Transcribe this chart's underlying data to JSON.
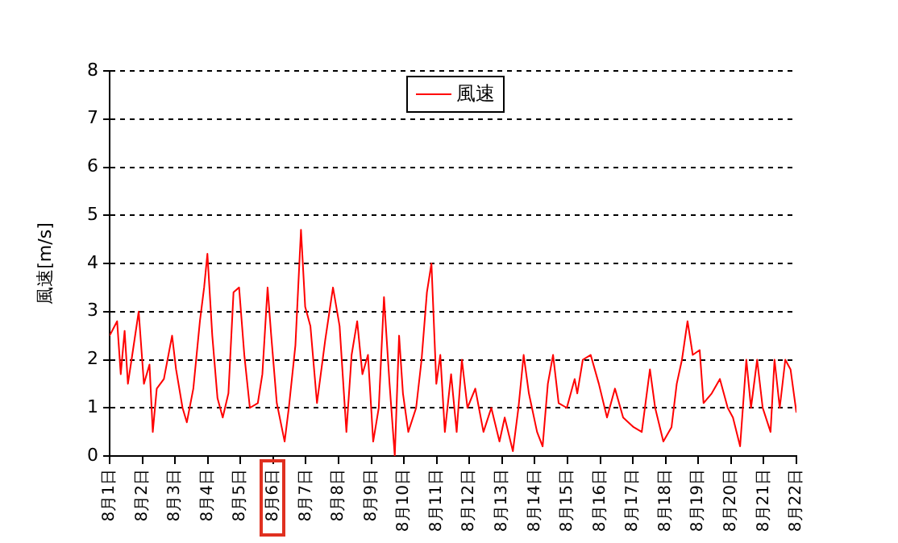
{
  "chart_data": {
    "type": "line",
    "ylabel": "風速[m/s]",
    "xlim": [
      "--08-01",
      "--08-22"
    ],
    "xticks": [
      {
        "value": "--08-01",
        "label": "8月1日"
      },
      {
        "value": "--08-02",
        "label": "8月2日"
      },
      {
        "value": "--08-03",
        "label": "8月3日"
      },
      {
        "value": "--08-04",
        "label": "8月4日"
      },
      {
        "value": "--08-05",
        "label": "8月5日"
      },
      {
        "value": "--08-06",
        "label": "8月6日"
      },
      {
        "value": "--08-07",
        "label": "8月7日"
      },
      {
        "value": "--08-08",
        "label": "8月8日"
      },
      {
        "value": "--08-09",
        "label": "8月9日"
      },
      {
        "value": "--08-10",
        "label": "8月10日"
      },
      {
        "value": "--08-11",
        "label": "8月11日"
      },
      {
        "value": "--08-12",
        "label": "8月12日"
      },
      {
        "value": "--08-13",
        "label": "8月13日"
      },
      {
        "value": "--08-14",
        "label": "8月14日"
      },
      {
        "value": "--08-15",
        "label": "8月15日"
      },
      {
        "value": "--08-16",
        "label": "8月16日"
      },
      {
        "value": "--08-17",
        "label": "8月17日"
      },
      {
        "value": "--08-18",
        "label": "8月18日"
      },
      {
        "value": "--08-19",
        "label": "8月19日"
      },
      {
        "value": "--08-20",
        "label": "8月20日"
      },
      {
        "value": "--08-21",
        "label": "8月21日"
      },
      {
        "value": "--08-22",
        "label": "8月22日"
      }
    ],
    "ylim": [
      0,
      8
    ],
    "yticks": [
      0,
      1,
      2,
      3,
      4,
      5,
      6,
      7,
      8
    ],
    "grid": "y",
    "legend": "top",
    "marker": "none",
    "line_style": "solid",
    "x": [
      "--08-01T00:00",
      "--08-01T05:30",
      "--08-01T08:10",
      "--08-01T11:00",
      "--08-01T13:25",
      "--08-01T16:05",
      "--08-01T21:20",
      "--08-02T01:10",
      "--08-02T05:15",
      "--08-02T07:40",
      "--08-02T10:35",
      "--08-02T15:50",
      "--08-02T21:50",
      "--08-03T00:45",
      "--08-03T05:30",
      "--08-03T08:40",
      "--08-03T13:25",
      "--08-03T18:15",
      "--08-03T21:20",
      "--08-03T23:45",
      "--08-04T03:20",
      "--08-04T07:10",
      "--08-04T11:00",
      "--08-04T15:10",
      "--08-04T18:55",
      "--08-04T23:00",
      "--08-05T02:50",
      "--08-05T06:55",
      "--08-05T12:45",
      "--08-05T16:05",
      "--08-05T19:55",
      "--08-05T22:35",
      "--08-06T02:40",
      "--08-06T08:25",
      "--08-06T11:30",
      "--08-06T16:20",
      "--08-06T20:25",
      "--08-06T23:30",
      "--08-07T03:20",
      "--08-07T08:10",
      "--08-07T14:10",
      "--08-07T19:55",
      "--08-08T00:45",
      "--08-08T05:45",
      "--08-08T09:35",
      "--08-08T13:40",
      "--08-08T17:30",
      "--08-08T21:35",
      "--08-09T01:25",
      "--08-09T05:30",
      "--08-09T09:20",
      "--08-09T13:25",
      "--08-09T17:15",
      "--08-09T20:25",
      "--08-09T23:15",
      "--08-10T03:10",
      "--08-10T08:55",
      "--08-10T12:55",
      "--08-10T16:50",
      "--08-10T20:10",
      "--08-10T23:45",
      "--08-11T02:40",
      "--08-11T06:00",
      "--08-11T10:35",
      "--08-11T14:40",
      "--08-11T18:30",
      "--08-11T22:35",
      "--08-12T04:20",
      "--08-12T10:20",
      "--08-12T16:05",
      "--08-12T22:05",
      "--08-13T01:55",
      "--08-13T07:55",
      "--08-13T12:00",
      "--08-13T15:50",
      "--08-13T19:40",
      "--08-14T01:40",
      "--08-14T05:45",
      "--08-14T09:35",
      "--08-14T13:25",
      "--08-14T17:30",
      "--08-14T23:30",
      "--08-15T05:15",
      "--08-15T07:10",
      "--08-15T11:15",
      "--08-15T17:00",
      "--08-15T23:00",
      "--08-16T05:00",
      "--08-16T10:50",
      "--08-16T16:50",
      "--08-17T00:30",
      "--08-17T06:30",
      "--08-17T12:30",
      "--08-17T16:20",
      "--08-17T22:20",
      "--08-18T04:20",
      "--08-18T08:10",
      "--08-18T12:00",
      "--08-18T16:05",
      "--08-18T19:55",
      "--08-19T01:00",
      "--08-19T03:50",
      "--08-19T09:50",
      "--08-19T15:50",
      "--08-19T21:35",
      "--08-20T01:25",
      "--08-20T06:40",
      "--08-20T11:15",
      "--08-20T14:40",
      "--08-20T19:10",
      "--08-20T23:15",
      "--08-21T05:00",
      "--08-21T07:55",
      "--08-21T11:45",
      "--08-21T15:50",
      "--08-21T19:40",
      "--08-22T00:00"
    ],
    "series": [
      {
        "name": "風速",
        "color": "#ff0000",
        "values": [
          2.5,
          2.8,
          1.7,
          2.6,
          1.5,
          2.0,
          3.0,
          1.5,
          1.9,
          0.5,
          1.4,
          1.6,
          2.5,
          1.8,
          1.0,
          0.7,
          1.4,
          2.8,
          3.5,
          4.2,
          2.5,
          1.2,
          0.8,
          1.3,
          3.4,
          3.5,
          2.1,
          1.0,
          1.1,
          1.7,
          3.5,
          2.5,
          1.1,
          0.3,
          1.0,
          2.3,
          4.7,
          3.1,
          2.7,
          1.1,
          2.4,
          3.5,
          2.7,
          0.5,
          2.1,
          2.8,
          1.7,
          2.1,
          0.3,
          1.0,
          3.3,
          1.5,
          0.0,
          2.5,
          1.3,
          0.5,
          1.0,
          2.0,
          3.4,
          4.0,
          1.5,
          2.1,
          0.5,
          1.7,
          0.5,
          2.0,
          1.0,
          1.4,
          0.5,
          1.0,
          0.3,
          0.8,
          0.1,
          1.0,
          2.1,
          1.3,
          0.5,
          0.2,
          1.5,
          2.1,
          1.1,
          1.0,
          1.6,
          1.3,
          2.0,
          2.1,
          1.5,
          0.8,
          1.4,
          0.8,
          0.6,
          0.5,
          1.8,
          1.0,
          0.3,
          0.6,
          1.5,
          2.0,
          2.8,
          2.1,
          2.2,
          1.1,
          1.3,
          1.6,
          1.0,
          0.8,
          0.2,
          2.0,
          1.0,
          2.0,
          1.0,
          0.5,
          2.0,
          1.0,
          2.0,
          1.8,
          0.9
        ]
      }
    ]
  }
}
